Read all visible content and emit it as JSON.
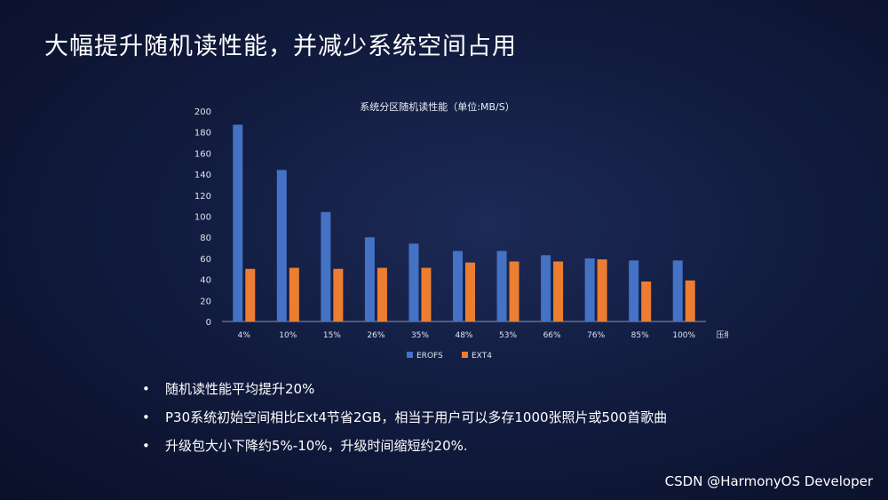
{
  "slide": {
    "title": "大幅提升随机读性能，并减少系统空间占用",
    "bullets": [
      "随机读性能平均提升20%",
      "P30系统初始空间相比Ext4节省2GB，相当于用户可以多存1000张照片或500首歌曲",
      "升级包大小下降约5%-10%，升级时间缩短约20%."
    ],
    "bullet_marker": "•",
    "watermark": "CSDN @HarmonyOS Developer"
  },
  "chart_data": {
    "type": "bar",
    "title": "系统分区随机读性能（单位:MB/S）",
    "xlabel": "压缩率",
    "ylabel": "",
    "categories": [
      "4%",
      "10%",
      "15%",
      "26%",
      "35%",
      "48%",
      "53%",
      "66%",
      "76%",
      "85%",
      "100%"
    ],
    "series": [
      {
        "name": "EROFS",
        "color": "#4472c4",
        "values": [
          187,
          144,
          104,
          80,
          74,
          67,
          67,
          63,
          60,
          58,
          58
        ]
      },
      {
        "name": "EXT4",
        "color": "#ed7d31",
        "values": [
          50,
          51,
          50,
          51,
          51,
          56,
          57,
          57,
          59,
          38,
          39
        ]
      }
    ],
    "ylim": [
      0,
      200
    ],
    "yticks": [
      0,
      20,
      40,
      60,
      80,
      100,
      120,
      140,
      160,
      180,
      200
    ],
    "grid": false,
    "legend": "bottom"
  }
}
